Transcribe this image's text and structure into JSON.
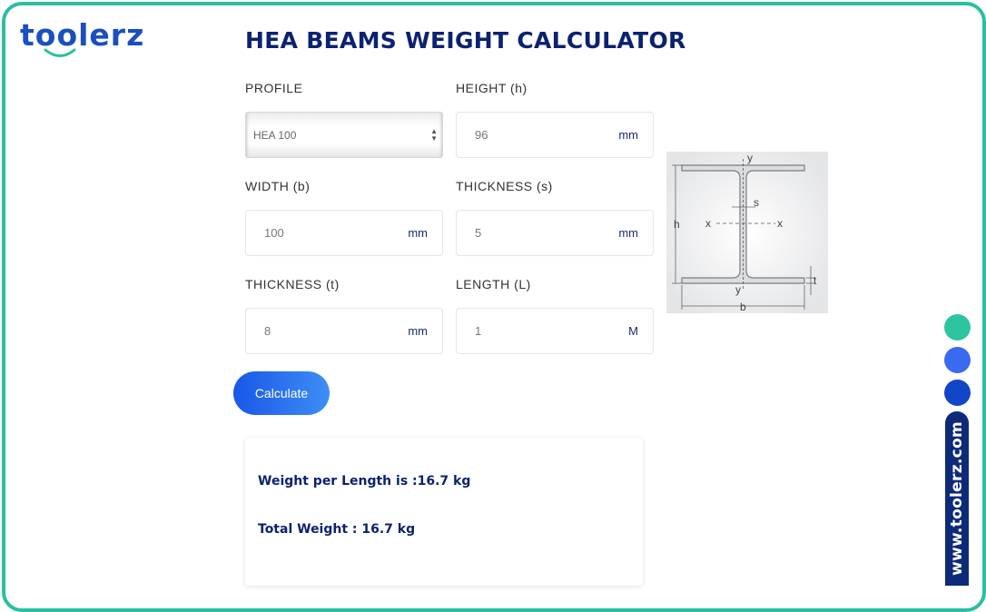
{
  "brand": {
    "logo_text": "toolerz",
    "side_url": "www.toolerz.com"
  },
  "page": {
    "title": "HEA BEAMS WEIGHT CALCULATOR"
  },
  "form": {
    "profile": {
      "label": "PROFILE",
      "value": "HEA 100"
    },
    "height": {
      "label": "HEIGHT (h)",
      "value": "96",
      "unit": "mm"
    },
    "width": {
      "label": "WIDTH (b)",
      "value": "100",
      "unit": "mm"
    },
    "thickness_s": {
      "label": "THICKNESS (s)",
      "value": "5",
      "unit": "mm"
    },
    "thickness_t": {
      "label": "THICKNESS (t)",
      "value": "8",
      "unit": "mm"
    },
    "length": {
      "label": "LENGTH (L)",
      "value": "1",
      "unit": "M"
    },
    "calculate_label": "Calculate"
  },
  "result": {
    "weight_per_length": "Weight per Length is :16.7 kg",
    "total_weight": "Total Weight : 16.7 kg"
  },
  "diagram": {
    "labels": {
      "y_top": "y",
      "y_bottom": "y",
      "s": "s",
      "h": "h",
      "x_left": "x",
      "x_right": "x",
      "t": "t",
      "b": "b"
    }
  },
  "colors": {
    "border": "#2bbfa0",
    "brand_blue": "#1a4fc0",
    "title": "#0c2270",
    "dot_green": "#2fc4a0",
    "dot_blue": "#3a6af0",
    "dot_dark": "#1146c8",
    "side_tab": "#0d2a7a"
  }
}
